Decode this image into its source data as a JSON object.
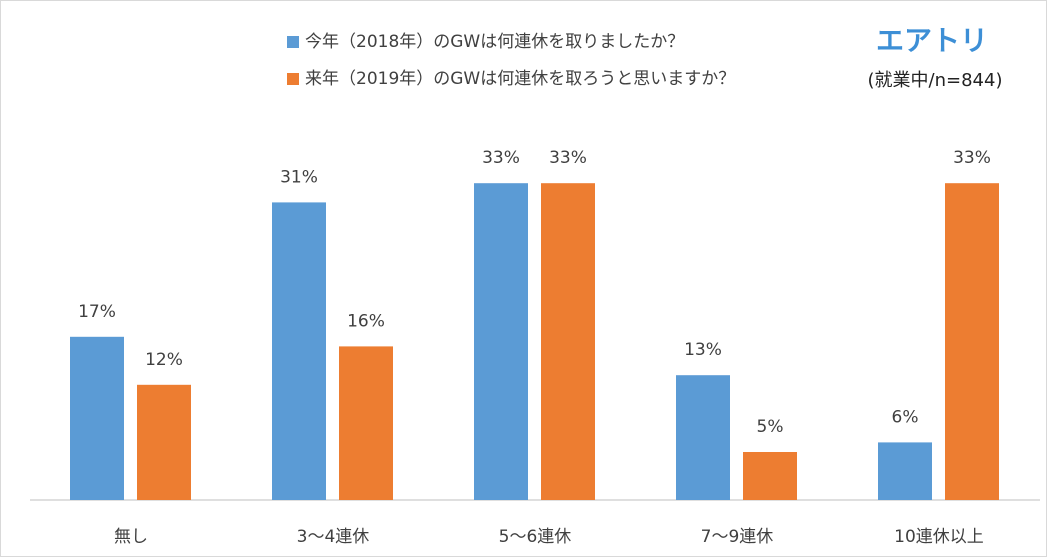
{
  "chart_data": {
    "type": "bar",
    "brand": "エアトリ",
    "subtitle": "(就業中/n=844)",
    "categories": [
      "無し",
      "3～4連休",
      "5～6連休",
      "7～9連休",
      "10連休以上"
    ],
    "series": [
      {
        "name": "今年（2018年）のGWは何連休を取りましたか？",
        "color": "#5b9bd5",
        "values": [
          17,
          31,
          33,
          13,
          6
        ],
        "value_labels": [
          "17%",
          "31%",
          "33%",
          "13%",
          "6%"
        ]
      },
      {
        "name": "来年（2019年）のGWは何連休を取ろうと思いますか？",
        "color": "#ed7d31",
        "values": [
          12,
          16,
          33,
          5,
          33
        ],
        "value_labels": [
          "12%",
          "16%",
          "33%",
          "5%",
          "33%"
        ]
      }
    ],
    "ylim": [
      0,
      35
    ]
  }
}
